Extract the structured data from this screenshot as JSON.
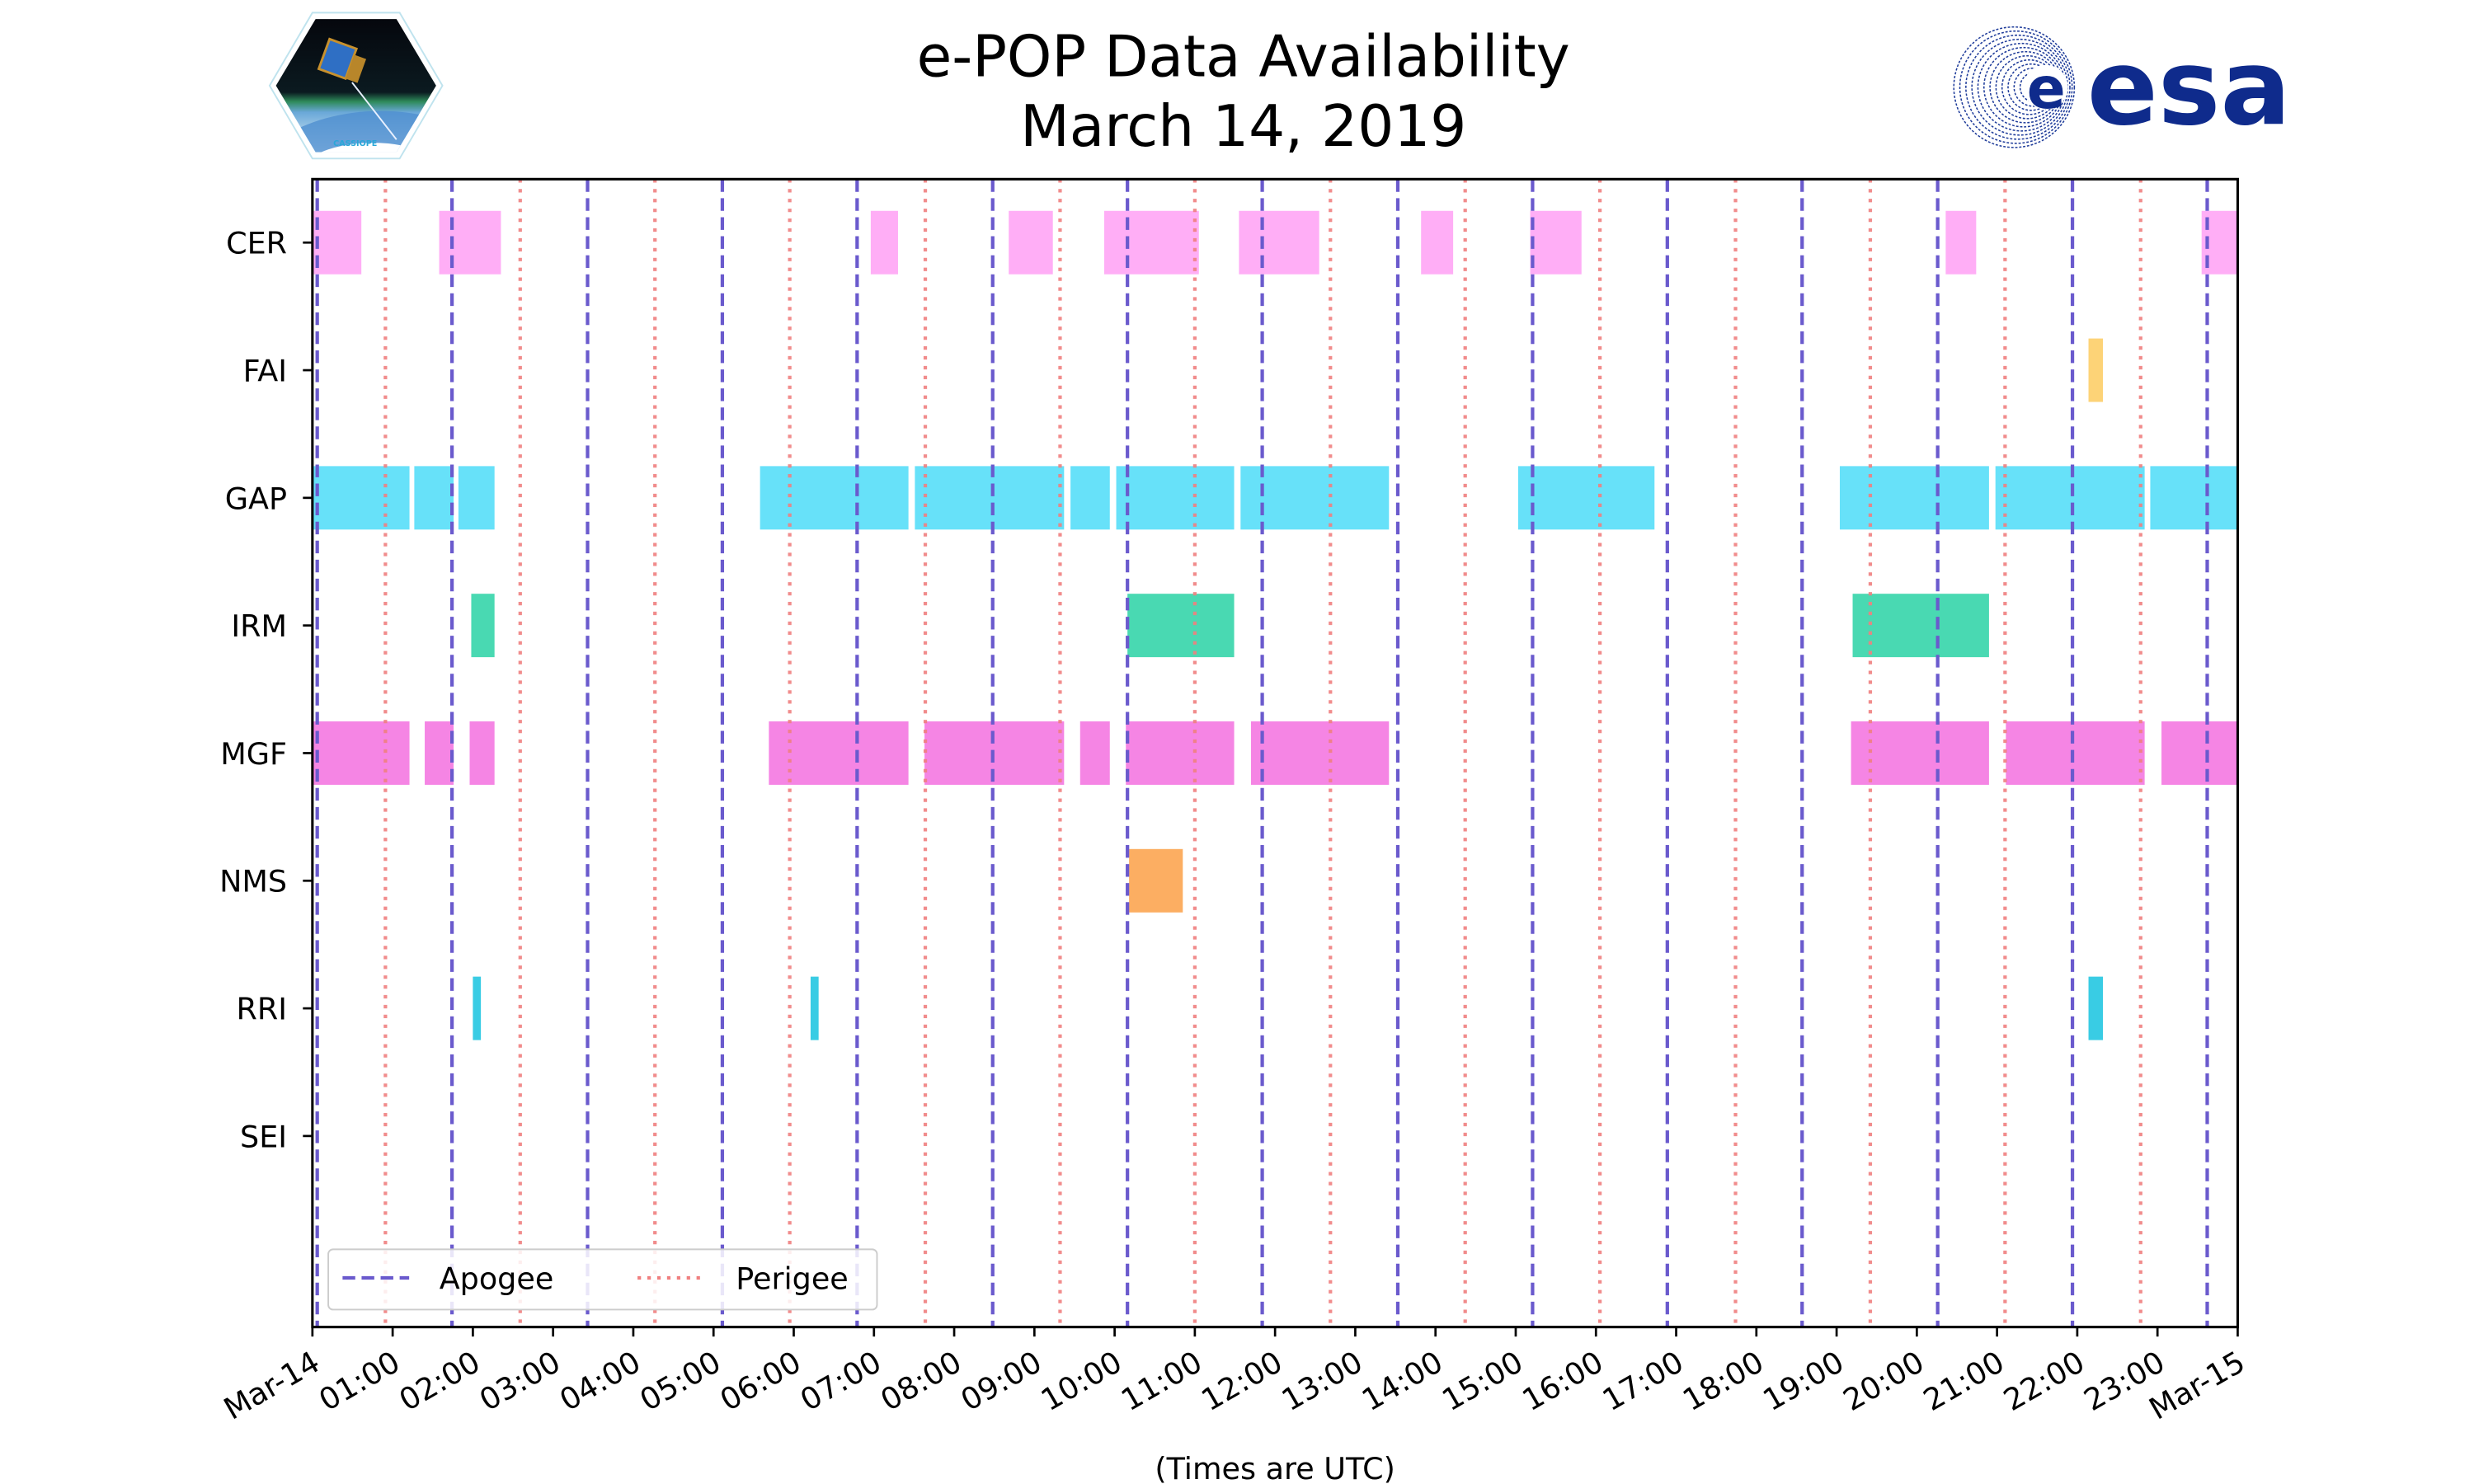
{
  "logos": {
    "left_text": "CASSIOPE",
    "right_text": "esa"
  },
  "chart_data": {
    "type": "timeline",
    "title": "e-POP Data Availability",
    "subtitle": "March 14, 2019",
    "xlabel": "(Times are UTC)",
    "x_unit": "hours UTC",
    "xlim": [
      0,
      24
    ],
    "x_ticks": [
      {
        "value": 0,
        "label": "Mar-14"
      },
      {
        "value": 1,
        "label": "01:00"
      },
      {
        "value": 2,
        "label": "02:00"
      },
      {
        "value": 3,
        "label": "03:00"
      },
      {
        "value": 4,
        "label": "04:00"
      },
      {
        "value": 5,
        "label": "05:00"
      },
      {
        "value": 6,
        "label": "06:00"
      },
      {
        "value": 7,
        "label": "07:00"
      },
      {
        "value": 8,
        "label": "08:00"
      },
      {
        "value": 9,
        "label": "09:00"
      },
      {
        "value": 10,
        "label": "10:00"
      },
      {
        "value": 11,
        "label": "11:00"
      },
      {
        "value": 12,
        "label": "12:00"
      },
      {
        "value": 13,
        "label": "13:00"
      },
      {
        "value": 14,
        "label": "14:00"
      },
      {
        "value": 15,
        "label": "15:00"
      },
      {
        "value": 16,
        "label": "16:00"
      },
      {
        "value": 17,
        "label": "17:00"
      },
      {
        "value": 18,
        "label": "18:00"
      },
      {
        "value": 19,
        "label": "19:00"
      },
      {
        "value": 20,
        "label": "20:00"
      },
      {
        "value": 21,
        "label": "21:00"
      },
      {
        "value": 22,
        "label": "22:00"
      },
      {
        "value": 23,
        "label": "23:00"
      },
      {
        "value": 24,
        "label": "Mar-15"
      }
    ],
    "legend": {
      "placement": "lower-left",
      "entries": [
        {
          "label": "Apogee",
          "style": "dashed",
          "color": "#6a5acd"
        },
        {
          "label": "Perigee",
          "style": "dotted",
          "color": "#f08080"
        }
      ]
    },
    "apogee_hours": [
      0.06,
      1.74,
      3.43,
      5.11,
      6.79,
      8.48,
      10.16,
      11.84,
      13.53,
      15.21,
      16.89,
      18.57,
      20.26,
      21.94,
      23.62
    ],
    "perigee_hours": [
      0.91,
      2.59,
      4.27,
      5.95,
      7.64,
      9.32,
      11.0,
      12.69,
      14.37,
      16.05,
      17.74,
      19.42,
      21.1,
      22.79
    ],
    "instruments": [
      {
        "name": "CER",
        "color": "#ffaaf5",
        "intervals": [
          [
            0,
            0.61
          ],
          [
            1.58,
            2.35
          ],
          [
            6.96,
            7.3
          ],
          [
            8.68,
            9.23
          ],
          [
            9.87,
            11.05
          ],
          [
            11.55,
            12.55
          ],
          [
            13.82,
            14.22
          ],
          [
            15.18,
            15.82
          ],
          [
            20.36,
            20.74
          ],
          [
            23.55,
            24
          ]
        ]
      },
      {
        "name": "FAI",
        "color": "#fdd170",
        "intervals": [
          [
            22.14,
            22.32
          ]
        ]
      },
      {
        "name": "GAP",
        "color": "#5fdff9",
        "intervals": [
          [
            0,
            1.21
          ],
          [
            1.27,
            1.76
          ],
          [
            1.82,
            2.27
          ],
          [
            5.58,
            7.43
          ],
          [
            7.51,
            9.37
          ],
          [
            9.45,
            9.94
          ],
          [
            10.02,
            11.49
          ],
          [
            11.57,
            13.42
          ],
          [
            15.03,
            16.73
          ],
          [
            19.04,
            20.9
          ],
          [
            20.98,
            22.84
          ],
          [
            22.91,
            24
          ]
        ]
      },
      {
        "name": "IRM",
        "color": "#3fd7ae",
        "intervals": [
          [
            1.98,
            2.27
          ],
          [
            10.16,
            11.49
          ],
          [
            19.2,
            20.9
          ]
        ]
      },
      {
        "name": "MGF",
        "color": "#f47ee3",
        "intervals": [
          [
            0,
            1.21
          ],
          [
            1.4,
            1.76
          ],
          [
            1.96,
            2.27
          ],
          [
            5.69,
            7.43
          ],
          [
            7.63,
            9.37
          ],
          [
            9.57,
            9.94
          ],
          [
            10.14,
            11.49
          ],
          [
            11.7,
            13.42
          ],
          [
            19.18,
            20.9
          ],
          [
            21.11,
            22.84
          ],
          [
            23.05,
            24
          ]
        ]
      },
      {
        "name": "NMS",
        "color": "#fcaa5a",
        "intervals": [
          [
            10.18,
            10.85
          ]
        ]
      },
      {
        "name": "RRI",
        "color": "#2ec9e3",
        "intervals": [
          [
            2.0,
            2.1
          ],
          [
            6.21,
            6.31
          ],
          [
            22.14,
            22.32
          ]
        ]
      },
      {
        "name": "SEI",
        "color": "#cccccc",
        "intervals": []
      }
    ]
  }
}
